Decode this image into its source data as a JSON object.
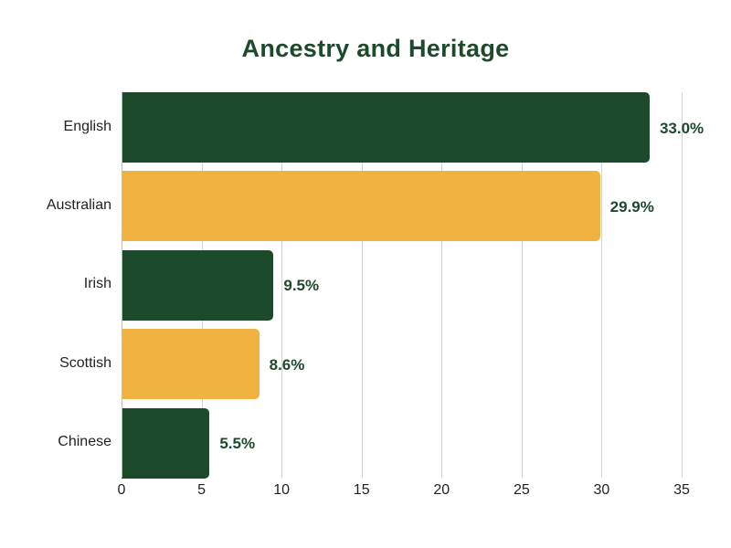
{
  "title": "Ancestry and Heritage",
  "colors": {
    "dark_green": "#1c4a2a",
    "gold": "#f0b240"
  },
  "chart_data": {
    "type": "bar",
    "orientation": "horizontal",
    "title": "Ancestry and Heritage",
    "xlabel": "",
    "ylabel": "",
    "categories": [
      "English",
      "Australian",
      "Irish",
      "Scottish",
      "Chinese"
    ],
    "values": [
      33.0,
      29.9,
      9.5,
      8.6,
      5.5
    ],
    "value_labels": [
      "33.0%",
      "29.9%",
      "9.5%",
      "8.6%",
      "5.5%"
    ],
    "bar_colors": [
      "#1c4a2a",
      "#f0b240",
      "#1c4a2a",
      "#f0b240",
      "#1c4a2a"
    ],
    "xlim": [
      0,
      35
    ],
    "xticks": [
      "0",
      "5",
      "10",
      "15",
      "20",
      "25",
      "30",
      "35"
    ],
    "grid": "vertical",
    "legend": "none"
  }
}
